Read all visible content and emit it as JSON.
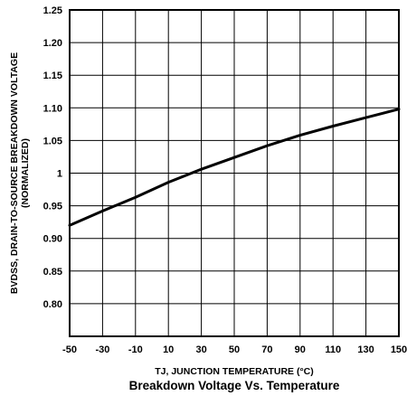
{
  "chart_data": {
    "type": "line",
    "title": "Breakdown Voltage Vs. Temperature",
    "xlabel": "TJ, JUNCTION TEMPERATURE (°C)",
    "ylabel_line1": "BVDSS, DRAIN-TO-SOURCE BREAKDOWN VOLTAGE",
    "ylabel_line2": "(NORMALIZED)",
    "xlim": [
      -50,
      150
    ],
    "ylim": [
      0.75,
      1.25
    ],
    "x_ticks": [
      "-50",
      "-30",
      "-10",
      "10",
      "30",
      "50",
      "70",
      "90",
      "110",
      "130",
      "150"
    ],
    "y_ticks": [
      "1.25",
      "1.20",
      "1.15",
      "1.10",
      "1.05",
      "1",
      "0.95",
      "0.90",
      "0.85",
      "0.80"
    ],
    "grid": true,
    "series": [
      {
        "x": [
          -50,
          -30,
          -10,
          10,
          30,
          50,
          70,
          90,
          110,
          130,
          150
        ],
        "y": [
          0.92,
          0.942,
          0.963,
          0.986,
          1.006,
          1.024,
          1.042,
          1.058,
          1.072,
          1.085,
          1.098
        ]
      }
    ]
  }
}
